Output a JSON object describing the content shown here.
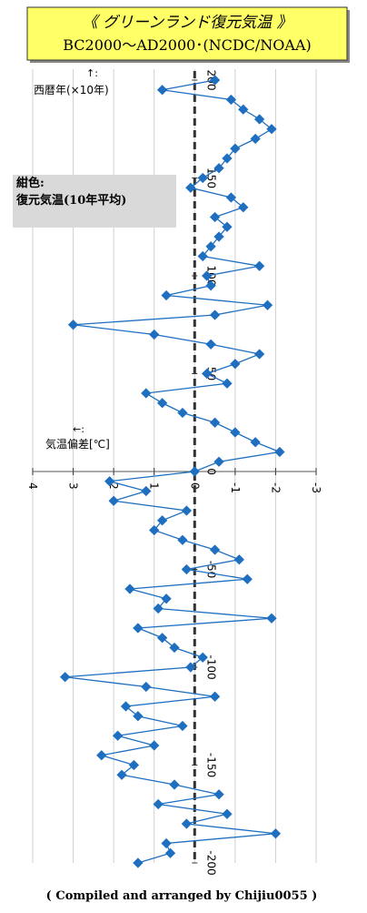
{
  "chart_data": {
    "type": "line",
    "title": "《 グリーンランド復元気温 》",
    "subtitle": "BC2000～AD2000･(NCDC/NOAA)",
    "year_axis_arrow": "↑:",
    "year_axis_label": "西暦年(×10年)",
    "temp_axis_arrow": "←:",
    "temp_axis_label": "気温偏差[℃]",
    "legend_color_label": "紺色:",
    "legend_series_label": "復元気温(10年平均)",
    "footer": "( Compiled and arranged by Chijiu0055 )",
    "color": "#1f6fc1",
    "x": [
      200,
      195,
      190,
      185,
      180,
      175,
      170,
      165,
      160,
      155,
      150,
      145,
      140,
      135,
      130,
      125,
      120,
      115,
      110,
      105,
      100,
      95,
      90,
      85,
      80,
      75,
      70,
      65,
      60,
      55,
      50,
      45,
      40,
      35,
      30,
      25,
      20,
      15,
      10,
      5,
      0,
      -5,
      -10,
      -15,
      -20,
      -25,
      -30,
      -35,
      -40,
      -45,
      -50,
      -55,
      -60,
      -65,
      -70,
      -75,
      -80,
      -85,
      -90,
      -95,
      -100,
      -105,
      -110,
      -115,
      -120,
      -125,
      -130,
      -135,
      -140,
      -145,
      -150,
      -155,
      -160,
      -165,
      -170,
      -175,
      -180,
      -185,
      -190,
      -195,
      -200
    ],
    "values": [
      -0.5,
      0.8,
      -0.9,
      -1.2,
      -1.6,
      -1.9,
      -1.5,
      -1.0,
      -0.8,
      -0.6,
      -0.2,
      0.1,
      -0.9,
      -1.2,
      -0.5,
      -0.8,
      -0.6,
      -0.4,
      -0.2,
      -1.6,
      -0.3,
      -0.4,
      0.7,
      -1.8,
      -0.5,
      3.0,
      1.0,
      -0.4,
      -1.6,
      -1.0,
      -0.3,
      -0.8,
      1.2,
      0.8,
      0.3,
      -0.5,
      -1.0,
      -1.5,
      -2.1,
      -0.6,
      0.0,
      2.1,
      1.2,
      2.0,
      0.2,
      0.8,
      1.0,
      0.3,
      -0.5,
      -1.1,
      0.2,
      -1.3,
      1.6,
      0.7,
      0.9,
      -1.9,
      1.4,
      0.8,
      0.5,
      -0.2,
      0.1,
      3.2,
      1.2,
      -0.5,
      1.7,
      1.4,
      0.3,
      1.9,
      1.0,
      2.3,
      1.5,
      1.8,
      0.5,
      -0.6,
      0.9,
      -0.8,
      0.2,
      -2.0,
      0.7,
      0.6,
      1.4
    ],
    "xlim": [
      200,
      -200
    ],
    "xticks": [
      200,
      150,
      100,
      50,
      0,
      -50,
      -100,
      -150,
      -200
    ],
    "ylim": [
      4,
      -3
    ],
    "yticks": [
      4,
      3,
      2,
      1,
      0,
      -1,
      -2,
      -3
    ],
    "grid": true
  }
}
